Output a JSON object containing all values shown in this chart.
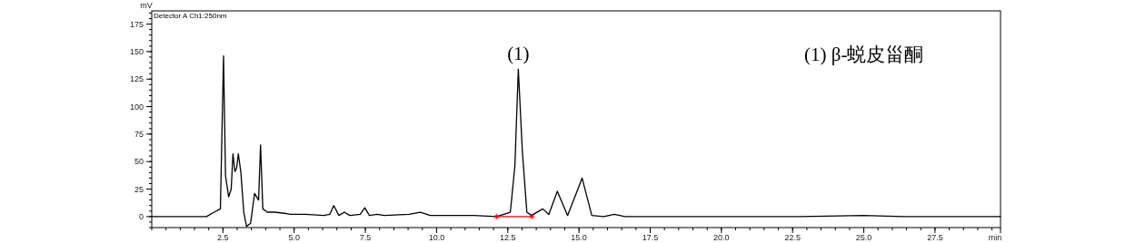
{
  "chart_data": {
    "type": "line",
    "ylabel": "mV",
    "xlabel": "min",
    "xlim": [
      0,
      29.8
    ],
    "ylim": [
      -10,
      187
    ],
    "xticks": [
      {
        "value": 2.5,
        "label": "2.5"
      },
      {
        "value": 5,
        "label": "5.0"
      },
      {
        "value": 7.5,
        "label": "7.5"
      },
      {
        "value": 10,
        "label": "10.0"
      },
      {
        "value": 12.5,
        "label": "12.5"
      },
      {
        "value": 15,
        "label": "15.0"
      },
      {
        "value": 17.5,
        "label": "17.5"
      },
      {
        "value": 20,
        "label": "20.0"
      },
      {
        "value": 22.5,
        "label": "22.5"
      },
      {
        "value": 25,
        "label": "25.0"
      },
      {
        "value": 27.5,
        "label": "27.5"
      }
    ],
    "yticks": [
      0,
      25,
      50,
      75,
      100,
      125,
      150,
      175
    ],
    "annotations": [
      "Detector A Ch1:250nm",
      {
        "text": "(1)",
        "x": 12.87,
        "y": 134
      },
      "(1)  β-蜕皮甾酮"
    ],
    "series": [
      {
        "color": "#000000",
        "x": [
          0,
          1.92,
          2.19,
          2.41,
          2.52,
          2.59,
          2.7,
          2.79,
          2.85,
          2.92,
          2.98,
          3.04,
          3.13,
          3.23,
          3.33,
          3.47,
          3.61,
          3.75,
          3.82,
          3.9,
          4.06,
          4.33,
          4.65,
          4.86,
          5.4,
          6.04,
          6.25,
          6.39,
          6.57,
          6.76,
          6.95,
          7.32,
          7.48,
          7.64,
          7.91,
          8.17,
          9.03,
          9.43,
          9.78,
          10.74,
          11.32,
          12.11,
          12.59,
          12.75,
          12.87,
          13.01,
          13.17,
          13.33,
          13.73,
          13.94,
          14.24,
          14.6,
          15.11,
          15.45,
          15.87,
          16.24,
          16.62,
          19.58,
          22.76,
          24.99,
          26.4,
          29.8
        ],
        "values": [
          0,
          0,
          4,
          7,
          146,
          37,
          18,
          25,
          57,
          41,
          44,
          57,
          40,
          4,
          -9,
          -6,
          21,
          15,
          65,
          7,
          4,
          4,
          3,
          2,
          2,
          1,
          2,
          10,
          1,
          4,
          1,
          2,
          8,
          1,
          2,
          1,
          2,
          4,
          1,
          1,
          1,
          0,
          4,
          46,
          134,
          60,
          4,
          1,
          7,
          2,
          23,
          1,
          35,
          1,
          0,
          2,
          0,
          0,
          0,
          1,
          0,
          0
        ]
      },
      {
        "color": "#ff0000",
        "marker": "cross",
        "x": [
          12.11,
          13.35
        ],
        "values": [
          0,
          0
        ]
      }
    ]
  }
}
